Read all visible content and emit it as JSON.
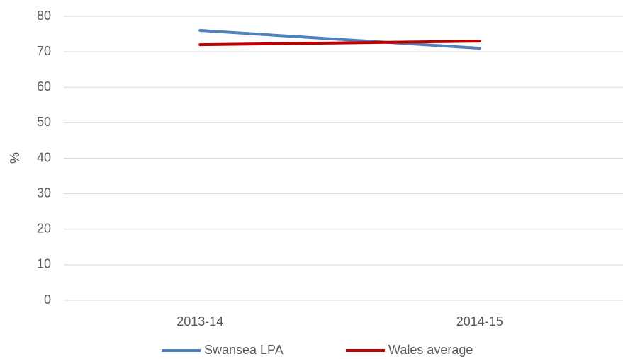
{
  "chart_data": {
    "type": "line",
    "y_label": "%",
    "categories": [
      "2013-14",
      "2014-15"
    ],
    "series": [
      {
        "name": "Swansea LPA",
        "color": "#4f81bd",
        "values": [
          76,
          71
        ]
      },
      {
        "name": "Wales average",
        "color": "#c00000",
        "values": [
          72,
          73
        ]
      }
    ],
    "ylim": [
      0,
      80
    ],
    "yticks": [
      0,
      10,
      20,
      30,
      40,
      50,
      60,
      70,
      80
    ],
    "grid": true,
    "legend": "bottom"
  }
}
